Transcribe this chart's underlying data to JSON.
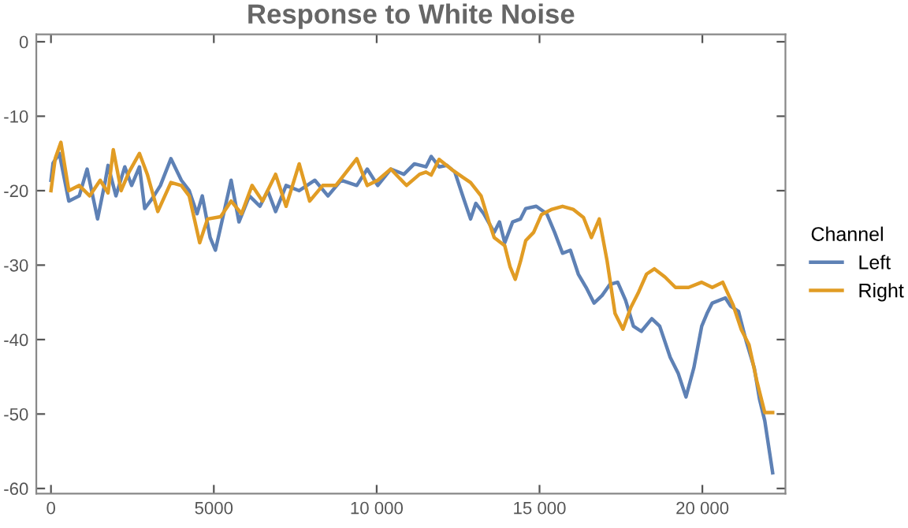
{
  "chart_data": {
    "type": "line",
    "title": "Response to White Noise",
    "legend_title": "Channel",
    "legend": "right",
    "xlim": [
      -450,
      22550
    ],
    "ylim": [
      -60.7,
      1
    ],
    "xticks": [
      0,
      5000,
      {
        "value": 10000,
        "label": "10 000"
      },
      {
        "value": 15000,
        "label": "15 000"
      },
      {
        "value": 20000,
        "label": "20 000"
      }
    ],
    "yticks": [
      0,
      -10,
      -20,
      -30,
      -40,
      -50,
      -60
    ],
    "grid": false,
    "marker": "none",
    "line_style": "solid",
    "series": [
      {
        "name": "Left",
        "color": "#5e81b5",
        "x": [
          0,
          64,
          257,
          547,
          868,
          1109,
          1431,
          1672,
          1752,
          1994,
          2267,
          2476,
          2717,
          2878,
          3119,
          3360,
          3682,
          4003,
          4244,
          4486,
          4646,
          4887,
          5048,
          5209,
          5531,
          5772,
          6093,
          6415,
          6656,
          6897,
          7219,
          7621,
          8103,
          8505,
          8907,
          9389,
          9711,
          10032,
          10434,
          10836,
          11158,
          11514,
          11675,
          11917,
          12158,
          12400,
          12642,
          12883,
          13045,
          13287,
          13609,
          13771,
          13933,
          14175,
          14416,
          14577,
          14900,
          15222,
          15464,
          15706,
          15948,
          16190,
          16432,
          16674,
          16916,
          17158,
          17400,
          17641,
          17883,
          18125,
          18448,
          18690,
          19013,
          19255,
          19497,
          19738,
          19980,
          20142,
          20303,
          20706,
          20867,
          21109,
          21351,
          21593,
          21754,
          21916,
          22158
        ],
        "values": [
          -18.6,
          -16.3,
          -15,
          -21.4,
          -20.7,
          -17.1,
          -23.8,
          -18.6,
          -16.6,
          -20.7,
          -16.8,
          -19.3,
          -16.8,
          -22.4,
          -21,
          -19.3,
          -15.7,
          -18.6,
          -20,
          -23.1,
          -20.7,
          -26.3,
          -28,
          -24.9,
          -18.6,
          -24.2,
          -20.7,
          -22.1,
          -20,
          -22.8,
          -19.3,
          -20,
          -18.6,
          -20.7,
          -18.6,
          -19.3,
          -17.1,
          -19.3,
          -17.1,
          -17.8,
          -16.4,
          -16.8,
          -15.4,
          -16.8,
          -16.6,
          -17.5,
          -20.7,
          -23.8,
          -21.7,
          -23.1,
          -25.6,
          -24.2,
          -27,
          -24.2,
          -23.8,
          -22.4,
          -22.1,
          -23.1,
          -25.6,
          -28.4,
          -28,
          -31.2,
          -33,
          -35.1,
          -34.1,
          -32.6,
          -32.3,
          -34.7,
          -38.2,
          -38.9,
          -37.2,
          -38.2,
          -42.4,
          -44.5,
          -47.7,
          -43.8,
          -38.2,
          -36.5,
          -35.1,
          -34.4,
          -35.5,
          -36.2,
          -40.3,
          -43.8,
          -48,
          -50.9,
          -57.9
        ]
      },
      {
        "name": "Right",
        "color": "#e19c24",
        "x": [
          0,
          129,
          305,
          547,
          868,
          1190,
          1511,
          1752,
          1913,
          2154,
          2395,
          2717,
          2958,
          3280,
          3682,
          4003,
          4244,
          4566,
          4807,
          5209,
          5531,
          5852,
          6174,
          6495,
          6897,
          7219,
          7621,
          7942,
          8344,
          8746,
          9389,
          9711,
          10032,
          10434,
          10916,
          11318,
          11514,
          11675,
          11917,
          12319,
          12642,
          12883,
          13206,
          13448,
          13609,
          13933,
          14094,
          14255,
          14416,
          14577,
          14819,
          15061,
          15383,
          15706,
          16029,
          16351,
          16593,
          16835,
          17077,
          17319,
          17561,
          17803,
          18045,
          18287,
          18529,
          18851,
          19174,
          19577,
          19980,
          20303,
          20625,
          20948,
          21190,
          21432,
          21674,
          21916,
          22158
        ],
        "values": [
          -20,
          -15.7,
          -13.5,
          -20,
          -19.3,
          -20.7,
          -18.6,
          -20.3,
          -14.5,
          -20,
          -17.5,
          -15,
          -17.8,
          -22.8,
          -18.9,
          -19.3,
          -20.7,
          -27,
          -23.8,
          -23.5,
          -21.4,
          -23.1,
          -19.3,
          -21.4,
          -17.8,
          -22.1,
          -16.4,
          -21.4,
          -19.3,
          -19.3,
          -15.7,
          -19.3,
          -18.6,
          -17.1,
          -19.3,
          -17.8,
          -17.5,
          -17.9,
          -15.8,
          -17.2,
          -18.2,
          -18.9,
          -20.7,
          -24.2,
          -26.3,
          -27.4,
          -30.2,
          -31.9,
          -29.5,
          -26.7,
          -25.6,
          -23.2,
          -22.5,
          -22.1,
          -22.5,
          -23.6,
          -26.3,
          -23.8,
          -29.5,
          -36.5,
          -38.6,
          -35.7,
          -33.6,
          -31.2,
          -30.5,
          -31.6,
          -33,
          -33,
          -32.3,
          -33,
          -32.3,
          -35.4,
          -38.6,
          -40.7,
          -45.6,
          -49.8,
          -49.8
        ]
      }
    ]
  }
}
